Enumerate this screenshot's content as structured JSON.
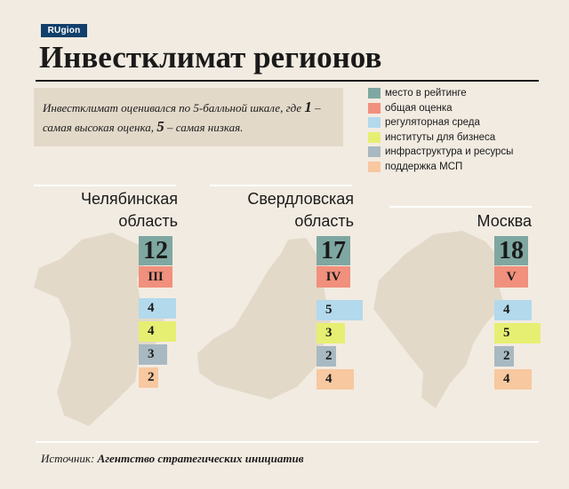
{
  "logo": "RUgion",
  "title": "Инвестклимат регионов",
  "note": {
    "part1": "Инвестклимат оценивался по 5-балльной шкале, где ",
    "n1": "1",
    "part2": " – самая высокая оценка, ",
    "n2": "5",
    "part3": " – самая низкая."
  },
  "colors": {
    "rank": "#7fa7a1",
    "grade": "#f0907d",
    "reg": "#b3d9ec",
    "inst": "#e7ef72",
    "infra": "#a8b9c2",
    "msp": "#f8c8a0",
    "region_shape": "#e3d9c9"
  },
  "legend": [
    {
      "label": "место в рейтинге",
      "color": "#7fa7a1"
    },
    {
      "label": "общая оценка",
      "color": "#f0907d"
    },
    {
      "label": "регуляторная среда",
      "color": "#b3d9ec"
    },
    {
      "label": "институты для бизнеса",
      "color": "#e7ef72"
    },
    {
      "label": "инфраструктура и ресурсы",
      "color": "#a8b9c2"
    },
    {
      "label": "поддержка МСП",
      "color": "#f8c8a0"
    }
  ],
  "chart_data": {
    "type": "bar",
    "categories": [
      "регуляторная среда",
      "институты для бизнеса",
      "инфраструктура и ресурсы",
      "поддержка МСП"
    ],
    "scale": [
      1,
      5
    ],
    "regions": [
      {
        "name_line1": "Челябинская",
        "name_line2": "область",
        "rank": "12",
        "grade": "III",
        "values": [
          4,
          4,
          3,
          2
        ]
      },
      {
        "name_line1": "Свердловская",
        "name_line2": "область",
        "rank": "17",
        "grade": "IV",
        "values": [
          5,
          3,
          2,
          4
        ]
      },
      {
        "name_line1": "",
        "name_line2": "Москва",
        "rank": "18",
        "grade": "V",
        "values": [
          4,
          5,
          2,
          4
        ]
      }
    ]
  },
  "source": {
    "label": "Источник:",
    "name": "Агентство стратегических инициатив"
  }
}
